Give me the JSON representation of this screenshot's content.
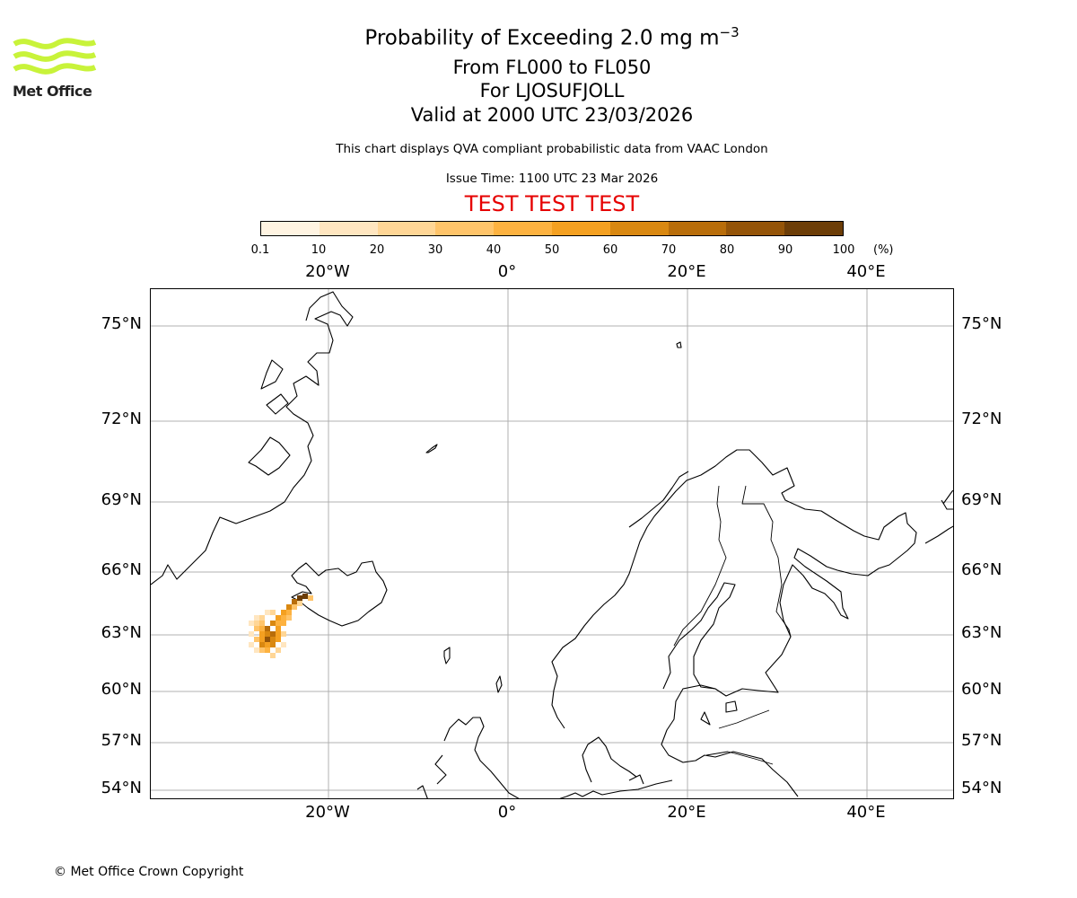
{
  "logo": {
    "text": "Met Office",
    "stripe_color": "#c8f33a"
  },
  "title": {
    "line1": "Probability of Exceeding 2.0 mg m",
    "line1_superscript": "−3",
    "line2": "From FL000 to FL050",
    "line3": "For LJOSUFJOLL",
    "line4": "Valid at 2000 UTC 23/03/2026",
    "subtitle": "This chart displays QVA compliant probabilistic data from VAAC London",
    "issue_time": "Issue Time: 1100 UTC 23 Mar 2026",
    "test_banner": "TEST TEST TEST",
    "test_color": "#e60000"
  },
  "colorbar": {
    "ticks": [
      "0.1",
      "10",
      "20",
      "30",
      "40",
      "50",
      "60",
      "70",
      "80",
      "90",
      "100"
    ],
    "unit": "(%)",
    "colors": [
      "#fff4e2",
      "#ffe6c0",
      "#ffd696",
      "#ffc46a",
      "#fdb240",
      "#f4a021",
      "#d98811",
      "#b86d0a",
      "#945408",
      "#6c3d07"
    ]
  },
  "map": {
    "lon_labels": [
      "20°W",
      "0°",
      "20°E",
      "40°E"
    ],
    "lat_labels": [
      "75°N",
      "72°N",
      "69°N",
      "66°N",
      "63°N",
      "60°N",
      "57°N",
      "54°N"
    ]
  },
  "footer": {
    "copyright": "© Met Office Crown Copyright"
  }
}
